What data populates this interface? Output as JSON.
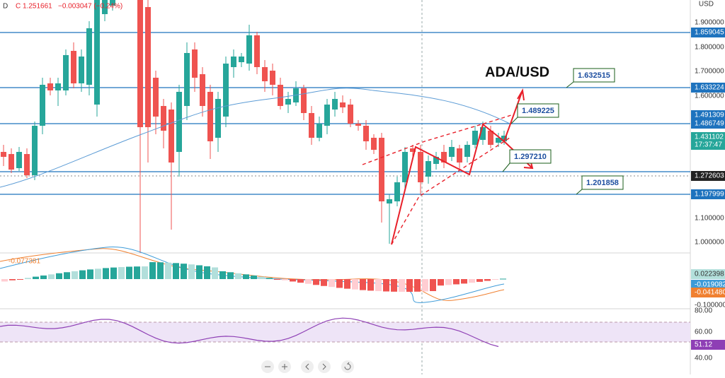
{
  "header": {
    "interval": "D",
    "close": "C 1.251661",
    "change": "−0.003047 (−0.24%)"
  },
  "currency": "USD",
  "annotations": {
    "title": "ADA/USD",
    "levels": [
      "1.632515",
      "1.489225",
      "1.297210",
      "1.201858"
    ]
  },
  "price_axis": {
    "ticks": [
      "1.900000",
      "1.800000",
      "1.700000",
      "1.600000",
      "1.100000",
      "1.000000"
    ],
    "markers": [
      "1.859045",
      "1.633224",
      "1.491309",
      "1.486749",
      "1.431102",
      "1.272603",
      "1.197999"
    ],
    "countdown": "17:37:47"
  },
  "macd": {
    "legend": "-0.077381",
    "axis": [
      "0.022398",
      "-0.019082",
      "-0.041480",
      "-0.100000"
    ]
  },
  "rsi": {
    "axis": [
      "80.00",
      "60.00",
      "51.12",
      "40.00"
    ]
  }
}
